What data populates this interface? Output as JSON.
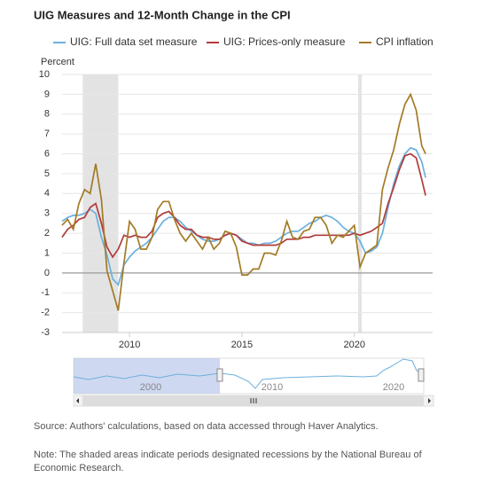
{
  "chart_data": {
    "type": "line",
    "title": "UIG Measures and 12-Month Change in the CPI",
    "y_label": "Percent",
    "x": [
      2007,
      2007.25,
      2007.5,
      2007.75,
      2008,
      2008.25,
      2008.5,
      2008.75,
      2009,
      2009.25,
      2009.5,
      2009.75,
      2010,
      2010.25,
      2010.5,
      2010.75,
      2011,
      2011.25,
      2011.5,
      2011.75,
      2012,
      2012.25,
      2012.5,
      2012.75,
      2013,
      2013.25,
      2013.5,
      2013.75,
      2014,
      2014.25,
      2014.5,
      2014.75,
      2015,
      2015.25,
      2015.5,
      2015.75,
      2016,
      2016.25,
      2016.5,
      2016.75,
      2017,
      2017.25,
      2017.5,
      2017.75,
      2018,
      2018.25,
      2018.5,
      2018.75,
      2019,
      2019.25,
      2019.5,
      2019.75,
      2020,
      2020.25,
      2020.5,
      2020.75,
      2021,
      2021.25,
      2021.5,
      2021.75,
      2022,
      2022.25,
      2022.5,
      2022.75,
      2023,
      2023.17
    ],
    "series": [
      {
        "name": "UIG: Full data set measure",
        "color": "#6cb0dd",
        "values": [
          2.6,
          2.8,
          2.9,
          2.9,
          3.0,
          3.2,
          3.0,
          1.8,
          0.9,
          -0.3,
          -0.6,
          0.4,
          0.8,
          1.1,
          1.3,
          1.5,
          1.8,
          2.2,
          2.6,
          2.8,
          2.8,
          2.6,
          2.3,
          2.1,
          1.9,
          1.7,
          1.6,
          1.6,
          1.7,
          1.9,
          2.0,
          1.9,
          1.7,
          1.5,
          1.5,
          1.4,
          1.5,
          1.5,
          1.6,
          1.8,
          2.0,
          2.1,
          2.1,
          2.3,
          2.5,
          2.6,
          2.8,
          2.9,
          2.8,
          2.6,
          2.3,
          2.1,
          2.0,
          1.6,
          1.0,
          1.1,
          1.3,
          2.0,
          3.3,
          4.5,
          5.4,
          6.0,
          6.3,
          6.2,
          5.6,
          4.8
        ]
      },
      {
        "name": "UIG: Prices-only measure",
        "color": "#b23b3b",
        "values": [
          1.8,
          2.2,
          2.4,
          2.7,
          2.8,
          3.3,
          3.5,
          2.5,
          1.3,
          0.8,
          1.2,
          1.9,
          1.8,
          1.9,
          1.8,
          1.8,
          2.1,
          2.8,
          3.0,
          3.1,
          2.8,
          2.4,
          2.2,
          2.2,
          1.9,
          1.8,
          1.8,
          1.7,
          1.7,
          1.9,
          2.0,
          1.9,
          1.6,
          1.5,
          1.4,
          1.4,
          1.4,
          1.4,
          1.4,
          1.5,
          1.7,
          1.7,
          1.7,
          1.8,
          1.8,
          1.9,
          1.9,
          1.9,
          1.9,
          1.9,
          1.9,
          1.9,
          2.0,
          1.9,
          2.0,
          2.1,
          2.3,
          2.5,
          3.5,
          4.3,
          5.2,
          5.9,
          6.0,
          5.8,
          4.7,
          3.9
        ]
      },
      {
        "name": "CPI inflation",
        "color": "#a27b26",
        "values": [
          2.4,
          2.7,
          2.2,
          3.5,
          4.2,
          4.0,
          5.5,
          3.7,
          0.1,
          -0.9,
          -1.9,
          0.5,
          2.6,
          2.2,
          1.2,
          1.2,
          1.8,
          3.2,
          3.6,
          3.6,
          2.7,
          2.0,
          1.6,
          2.0,
          1.6,
          1.2,
          1.8,
          1.2,
          1.5,
          2.1,
          2.0,
          1.3,
          -0.1,
          -0.1,
          0.2,
          0.2,
          1.0,
          1.0,
          0.9,
          1.6,
          2.6,
          1.8,
          1.7,
          2.1,
          2.2,
          2.8,
          2.8,
          2.4,
          1.5,
          1.9,
          1.8,
          2.1,
          2.4,
          0.3,
          1.0,
          1.2,
          1.4,
          4.2,
          5.3,
          6.2,
          7.5,
          8.5,
          9.0,
          8.2,
          6.4,
          6.0
        ]
      }
    ],
    "recessions": [
      [
        2007.92,
        2009.5
      ],
      [
        2020.17,
        2020.33
      ]
    ],
    "xlim": [
      2007,
      2023.48
    ],
    "xticks": [
      2010,
      2015,
      2020
    ],
    "ylim": [
      -3,
      10
    ],
    "yticks": [
      -3,
      -2,
      -1,
      0,
      1,
      2,
      3,
      4,
      5,
      6,
      7,
      8,
      9,
      10
    ],
    "grid": true,
    "navigator_labels": [
      "2000",
      "2010",
      "2020"
    ],
    "source": "Source: Authors' calculations, based on data accessed through Haver Analytics.",
    "note": "Note: The shaded areas indicate periods designated recessions by the National Bureau of Economic Research."
  }
}
